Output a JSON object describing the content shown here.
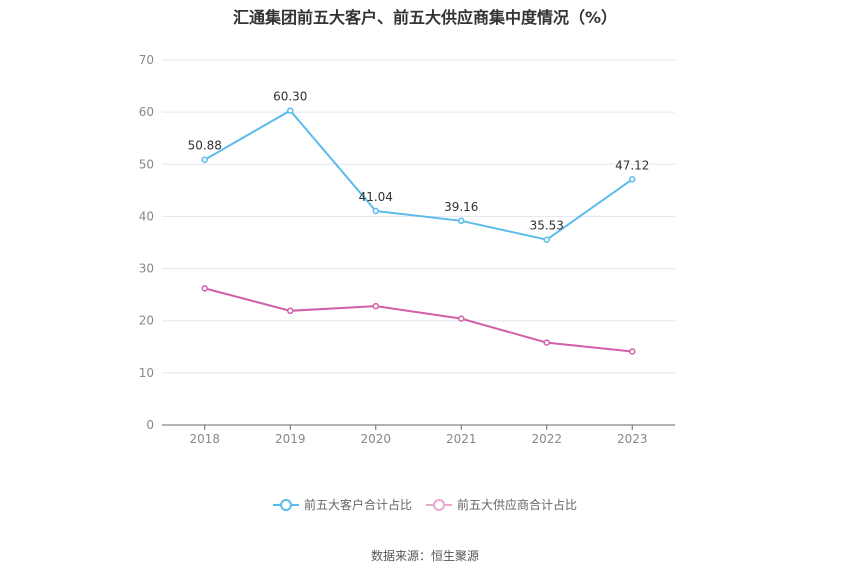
{
  "chart_data": {
    "type": "line",
    "title": "汇通集团前五大客户、前五大供应商集中度情况（%）",
    "categories": [
      "2018",
      "2019",
      "2020",
      "2021",
      "2022",
      "2023"
    ],
    "ylim": [
      0,
      70
    ],
    "yticks": [
      0,
      10,
      20,
      30,
      40,
      50,
      60,
      70
    ],
    "grid": true,
    "legend_position": "bottom-center",
    "series": [
      {
        "name": "前五大客户合计占比",
        "color": "#5bbcec",
        "values": [
          50.88,
          60.3,
          41.04,
          39.16,
          35.53,
          47.12
        ],
        "labels": [
          "50.88",
          "60.30",
          "41.04",
          "39.16",
          "35.53",
          "47.12"
        ]
      },
      {
        "name": "前五大供应商合计占比",
        "color": "#d060a8",
        "values": [
          26.2,
          21.9,
          22.8,
          20.4,
          15.8,
          14.1
        ]
      }
    ]
  },
  "source": "数据来源：恒生聚源"
}
